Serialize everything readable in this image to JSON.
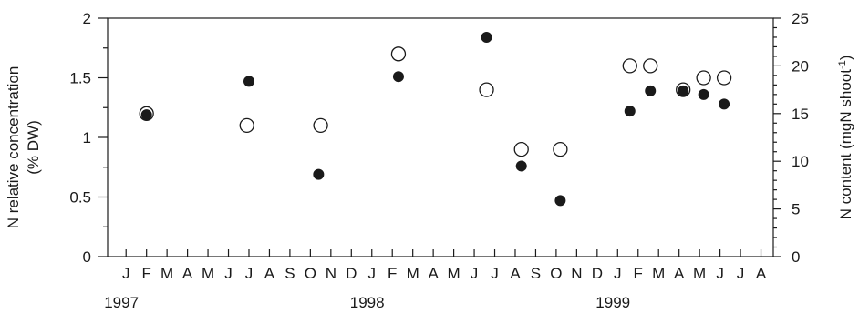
{
  "chart_data": {
    "type": "scatter",
    "title": "",
    "x_ticks": [
      "J",
      "F",
      "M",
      "A",
      "M",
      "J",
      "J",
      "A",
      "S",
      "O",
      "N",
      "D",
      "J",
      "F",
      "M",
      "A",
      "M",
      "J",
      "J",
      "A",
      "S",
      "O",
      "N",
      "D",
      "J",
      "F",
      "M",
      "A",
      "M",
      "J",
      "J",
      "A"
    ],
    "year_labels": [
      {
        "label": "1997",
        "at_month": 0
      },
      {
        "label": "1998",
        "at_month": 12
      },
      {
        "label": "1999",
        "at_month": 24
      }
    ],
    "y_left": {
      "label_line1": "N relative concentration",
      "label_line2": "(% DW)",
      "range": [
        0,
        2
      ],
      "ticks": [
        0,
        0.5,
        1,
        1.5,
        2
      ],
      "tick_labels": [
        "0",
        "0.5",
        "1",
        "1.5",
        "2"
      ]
    },
    "y_right": {
      "label_main": "N content (mgN shoot",
      "label_sup": "-1",
      "label_close": ")",
      "range": [
        0,
        25
      ],
      "ticks": [
        0,
        5,
        10,
        15,
        20,
        25
      ],
      "tick_labels": [
        "0",
        "5",
        "10",
        "15",
        "20",
        "25"
      ]
    },
    "series": [
      {
        "marker": "open-circle",
        "axis": "left",
        "points": [
          {
            "x": 1,
            "y": 1.2
          },
          {
            "x": 5.9,
            "y": 1.1
          },
          {
            "x": 9.5,
            "y": 1.1
          },
          {
            "x": 13.3,
            "y": 1.7
          },
          {
            "x": 17.6,
            "y": 1.4
          },
          {
            "x": 19.3,
            "y": 0.9
          },
          {
            "x": 21.2,
            "y": 0.9
          },
          {
            "x": 24.6,
            "y": 1.6
          },
          {
            "x": 25.6,
            "y": 1.6
          },
          {
            "x": 27.2,
            "y": 1.4
          },
          {
            "x": 28.2,
            "y": 1.5
          },
          {
            "x": 29.2,
            "y": 1.5
          }
        ]
      },
      {
        "marker": "filled-circle",
        "axis": "left",
        "points": [
          {
            "x": 1,
            "y": 1.19
          },
          {
            "x": 6,
            "y": 1.47
          },
          {
            "x": 9.4,
            "y": 0.69
          },
          {
            "x": 13.3,
            "y": 1.51
          },
          {
            "x": 17.6,
            "y": 1.84
          },
          {
            "x": 19.3,
            "y": 0.76
          },
          {
            "x": 21.2,
            "y": 0.47
          },
          {
            "x": 24.6,
            "y": 1.22
          },
          {
            "x": 25.6,
            "y": 1.39
          },
          {
            "x": 27.2,
            "y": 1.39
          },
          {
            "x": 28.2,
            "y": 1.36
          },
          {
            "x": 29.2,
            "y": 1.28
          }
        ]
      }
    ],
    "grid": false,
    "legend": "none"
  }
}
